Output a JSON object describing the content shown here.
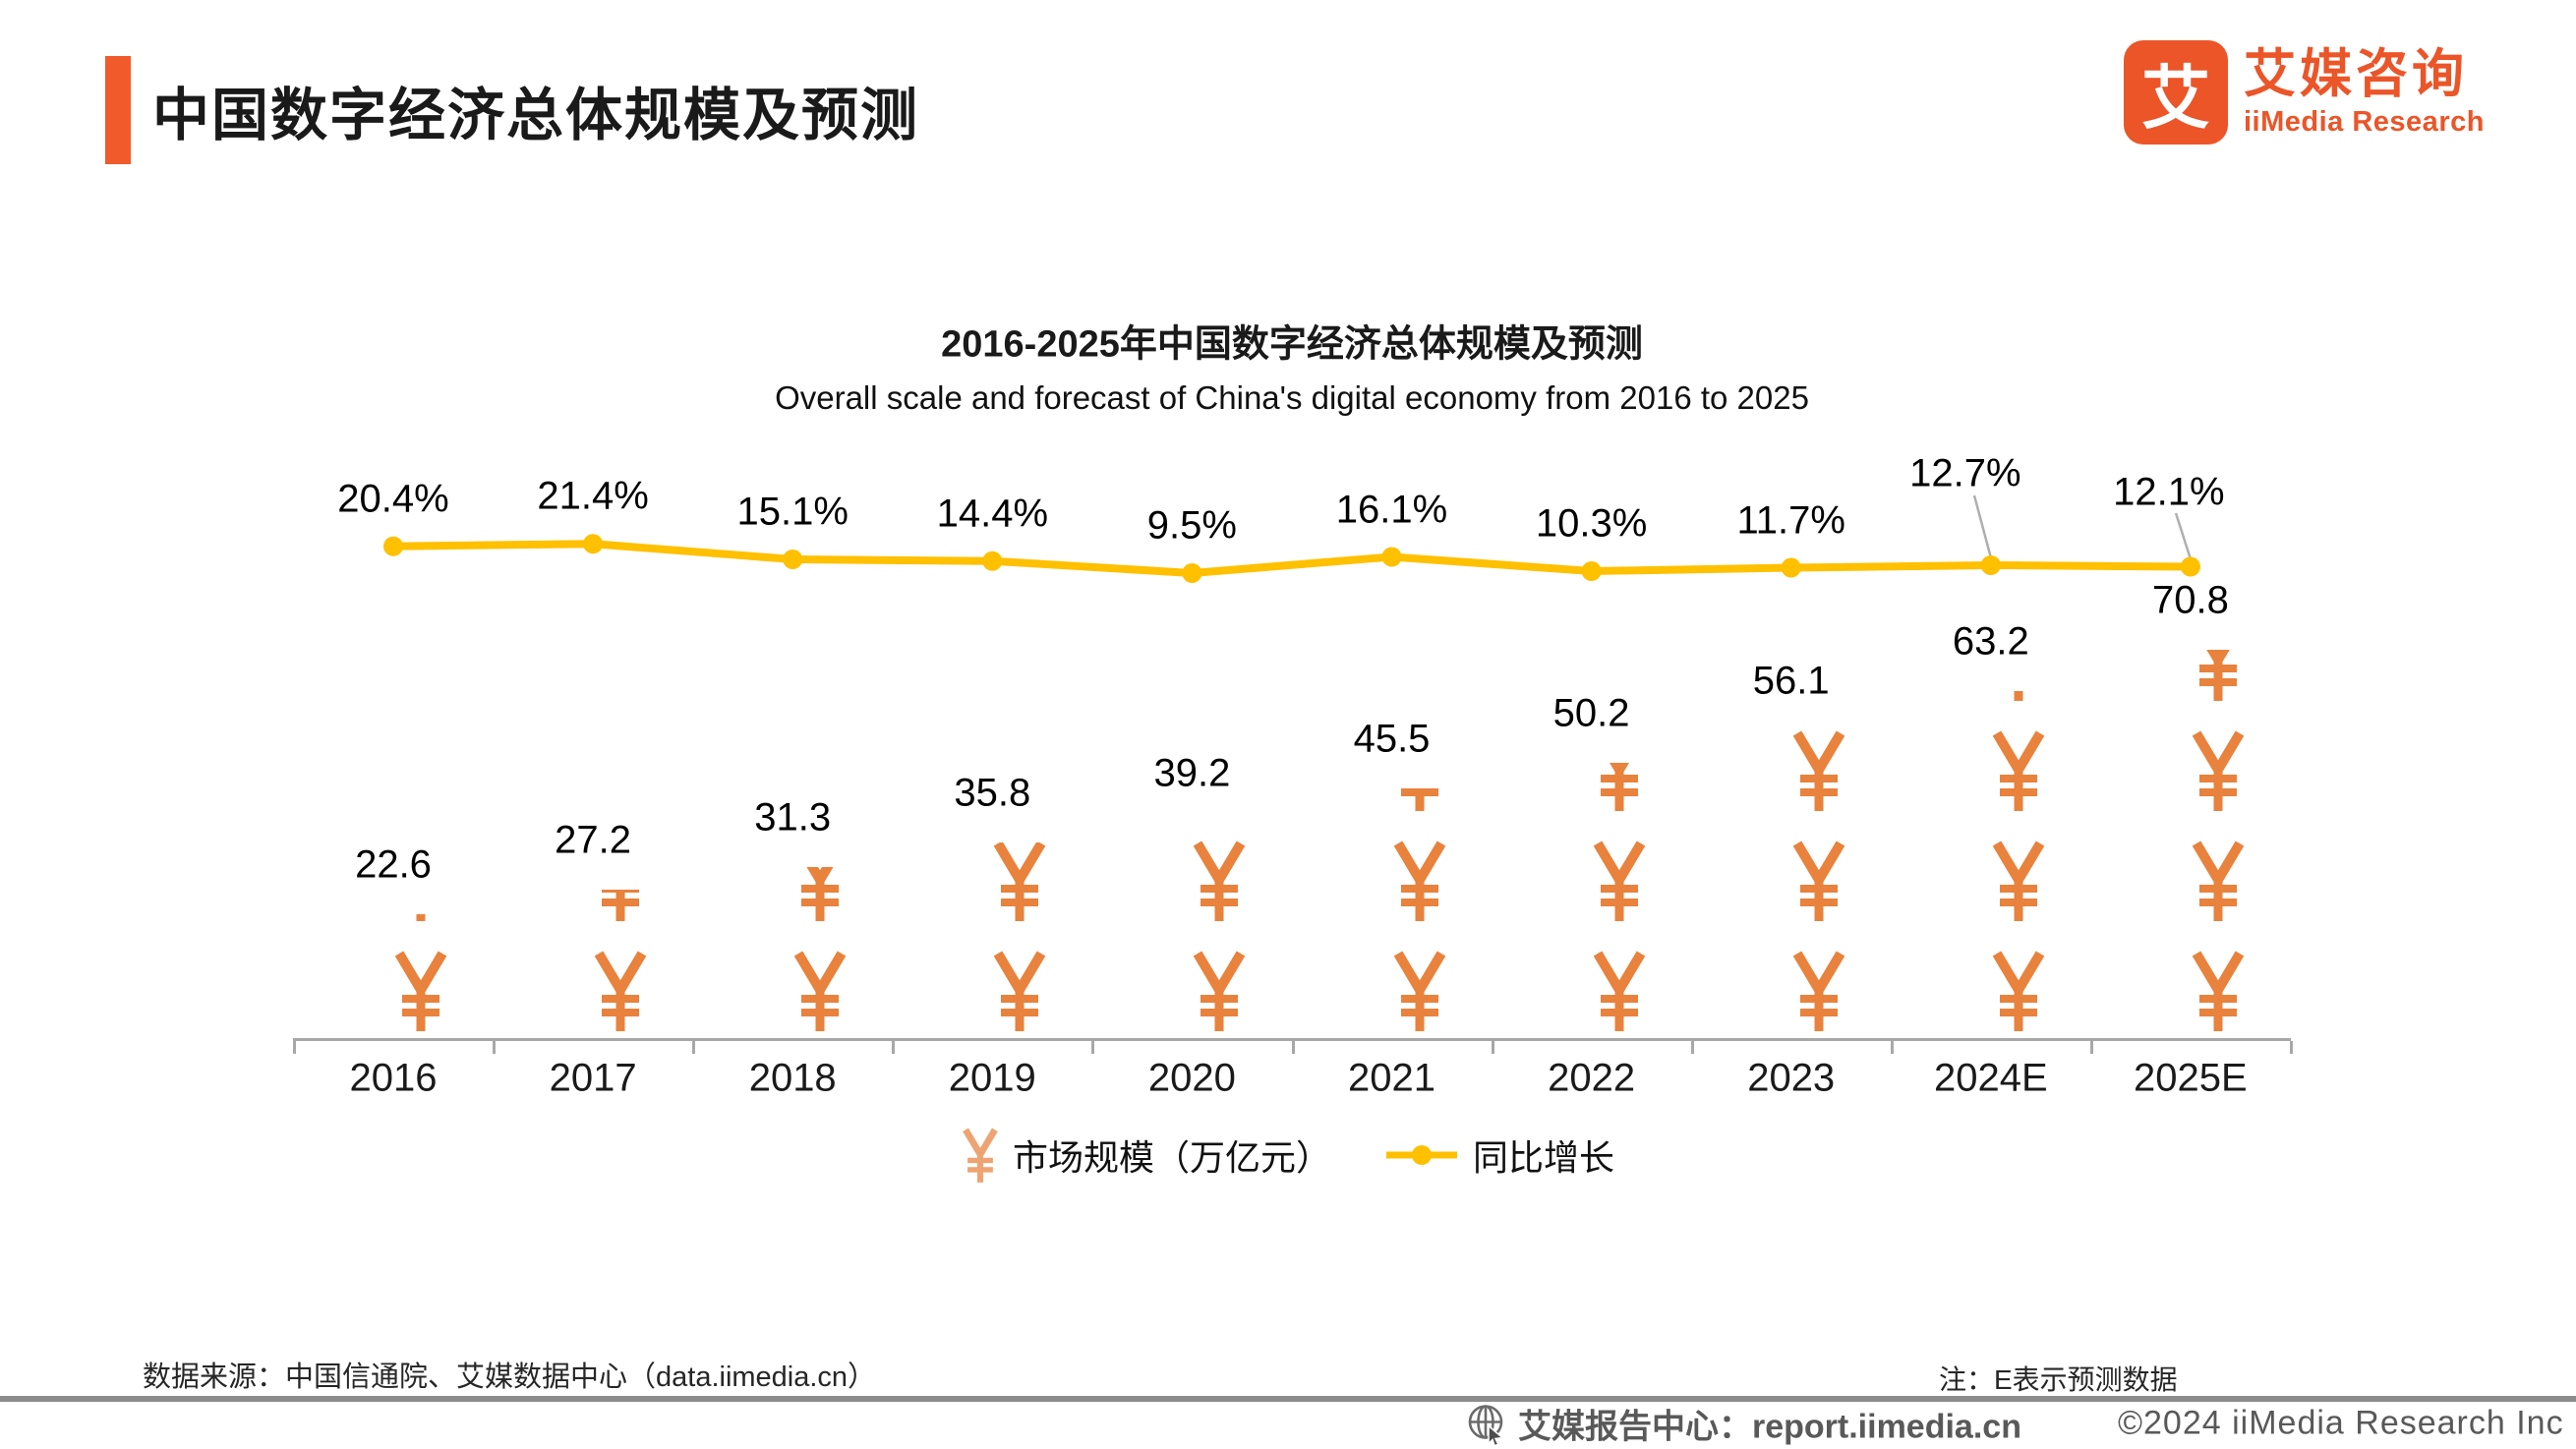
{
  "page": {
    "title": "中国数字经济总体规模及预测"
  },
  "logo": {
    "mark": "艾",
    "name_cn": "艾媒咨询",
    "name_en": "iiMedia Research"
  },
  "chart": {
    "title": "2016-2025年中国数字经济总体规模及预测",
    "subtitle": "Overall scale and forecast of China's digital economy from 2016 to 2025",
    "legend": [
      {
        "marker": "yuan-pictogram",
        "label": "市场规模（万亿元）"
      },
      {
        "marker": "line-dot",
        "label": "同比增长"
      }
    ]
  },
  "chart_data": {
    "type": "bar+line",
    "categories": [
      "2016",
      "2017",
      "2018",
      "2019",
      "2020",
      "2021",
      "2022",
      "2023",
      "2024E",
      "2025E"
    ],
    "series": [
      {
        "name": "市场规模（万亿元）",
        "type": "pictogram-bar",
        "unit": "万亿元",
        "values": [
          22.6,
          27.2,
          31.3,
          35.8,
          39.2,
          45.5,
          50.2,
          56.1,
          63.2,
          70.8
        ]
      },
      {
        "name": "同比增长",
        "type": "line",
        "unit": "%",
        "values": [
          20.4,
          21.4,
          15.1,
          14.4,
          9.5,
          16.1,
          10.3,
          11.7,
          12.7,
          12.1
        ]
      }
    ],
    "value_labels": [
      "22.6",
      "27.2",
      "31.3",
      "35.8",
      "39.2",
      "45.5",
      "50.2",
      "56.1",
      "63.2",
      "70.8"
    ],
    "growth_labels": [
      "20.4%",
      "21.4%",
      "15.1%",
      "14.4%",
      "9.5%",
      "16.1%",
      "10.3%",
      "11.7%",
      "12.7%",
      "12.1%"
    ],
    "legend_position": "bottom",
    "grid": false,
    "colors": {
      "bar": "#E8823C",
      "line": "#FFC000",
      "accent": "#F15A2B"
    }
  },
  "footer": {
    "source": "数据来源：中国信通院、艾媒数据中心（data.iimedia.cn）",
    "note": "注：E表示预测数据",
    "report_center": "艾媒报告中心：report.iimedia.cn",
    "copyright": "©2024  iiMedia Research  Inc"
  }
}
